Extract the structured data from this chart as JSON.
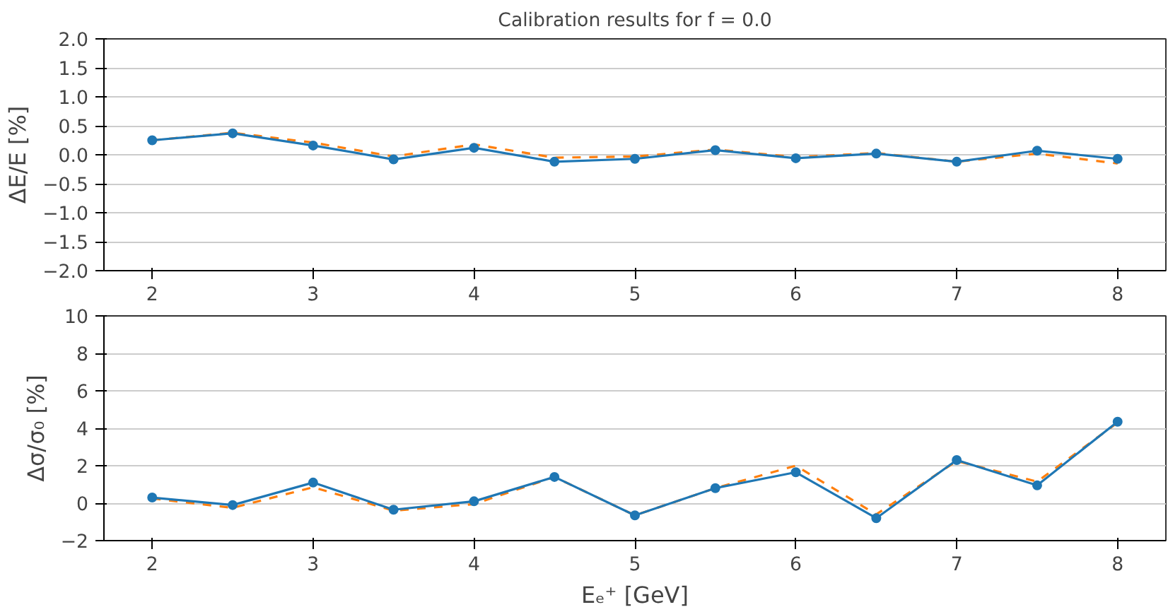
{
  "chart_data": [
    {
      "type": "line",
      "title": "Calibration results for f = 0.0",
      "ylabel": "ΔE/E [%]",
      "x": [
        2,
        2.5,
        3,
        3.5,
        4,
        4.5,
        5,
        5.5,
        6,
        6.5,
        7,
        7.5,
        8
      ],
      "xlim": [
        1.7,
        8.3
      ],
      "xticks": [
        2,
        3,
        4,
        5,
        6,
        7,
        8
      ],
      "ylim": [
        -2,
        2
      ],
      "yticks": [
        {
          "value": -2,
          "label": "−2.0"
        },
        {
          "value": -1.5,
          "label": "−1.5"
        },
        {
          "value": -1,
          "label": "−1.0"
        },
        {
          "value": -0.5,
          "label": "−0.5"
        },
        {
          "value": 0,
          "label": "0.0"
        },
        {
          "value": 0.5,
          "label": "0.5"
        },
        {
          "value": 1,
          "label": "1.0"
        },
        {
          "value": 1.5,
          "label": "1.5"
        },
        {
          "value": 2,
          "label": "2.0"
        }
      ],
      "grid": "y",
      "series": [
        {
          "color": "#ff7f0e",
          "line_style": "dashed",
          "marker": "none",
          "values": [
            0.25,
            0.38,
            0.21,
            -0.03,
            0.18,
            -0.05,
            -0.03,
            0.09,
            -0.04,
            0.03,
            -0.12,
            0.02,
            -0.15
          ]
        },
        {
          "color": "#1f77b4",
          "line_style": "solid",
          "marker": "circle",
          "values": [
            0.25,
            0.37,
            0.16,
            -0.08,
            0.12,
            -0.12,
            -0.07,
            0.08,
            -0.06,
            0.02,
            -0.12,
            0.07,
            -0.07
          ]
        }
      ]
    },
    {
      "type": "line",
      "ylabel": "Δσ/σ₀ [%]",
      "xlabel": "Eₑ⁺ [GeV]",
      "x": [
        2,
        2.5,
        3,
        3.5,
        4,
        4.5,
        5,
        5.5,
        6,
        6.5,
        7,
        7.5,
        8
      ],
      "xlim": [
        1.7,
        8.3
      ],
      "xticks": [
        2,
        3,
        4,
        5,
        6,
        7,
        8
      ],
      "ylim": [
        -2,
        10
      ],
      "yticks": [
        {
          "value": -2,
          "label": "−2"
        },
        0,
        2,
        4,
        6,
        8,
        10
      ],
      "grid": "y",
      "series": [
        {
          "color": "#ff7f0e",
          "line_style": "dashed",
          "marker": "none",
          "values": [
            0.25,
            -0.25,
            0.85,
            -0.4,
            -0.05,
            1.4,
            -0.65,
            0.8,
            2.0,
            -0.6,
            2.25,
            1.15,
            4.3
          ]
        },
        {
          "color": "#1f77b4",
          "line_style": "solid",
          "marker": "circle",
          "values": [
            0.3,
            -0.1,
            1.1,
            -0.35,
            0.1,
            1.4,
            -0.65,
            0.8,
            1.65,
            -0.8,
            2.3,
            0.95,
            4.35
          ]
        }
      ]
    }
  ]
}
